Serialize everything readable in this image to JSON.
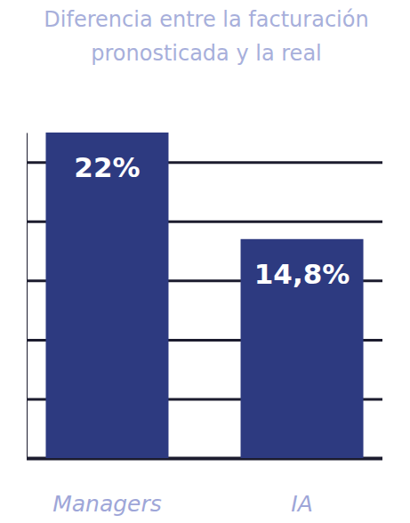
{
  "chart_data": {
    "type": "bar",
    "title": "Diferencia entre la facturación\npronosticada y la real",
    "categories": [
      "Managers",
      "IA"
    ],
    "values": [
      22,
      14.8
    ],
    "value_labels": [
      "22%",
      "14,8%"
    ],
    "color": "#2d3a80",
    "ylim": [
      0,
      22
    ],
    "yticks": [
      0,
      4,
      8,
      12,
      16,
      20
    ],
    "grid": true,
    "data_labels": true,
    "tick_labels": "x"
  }
}
